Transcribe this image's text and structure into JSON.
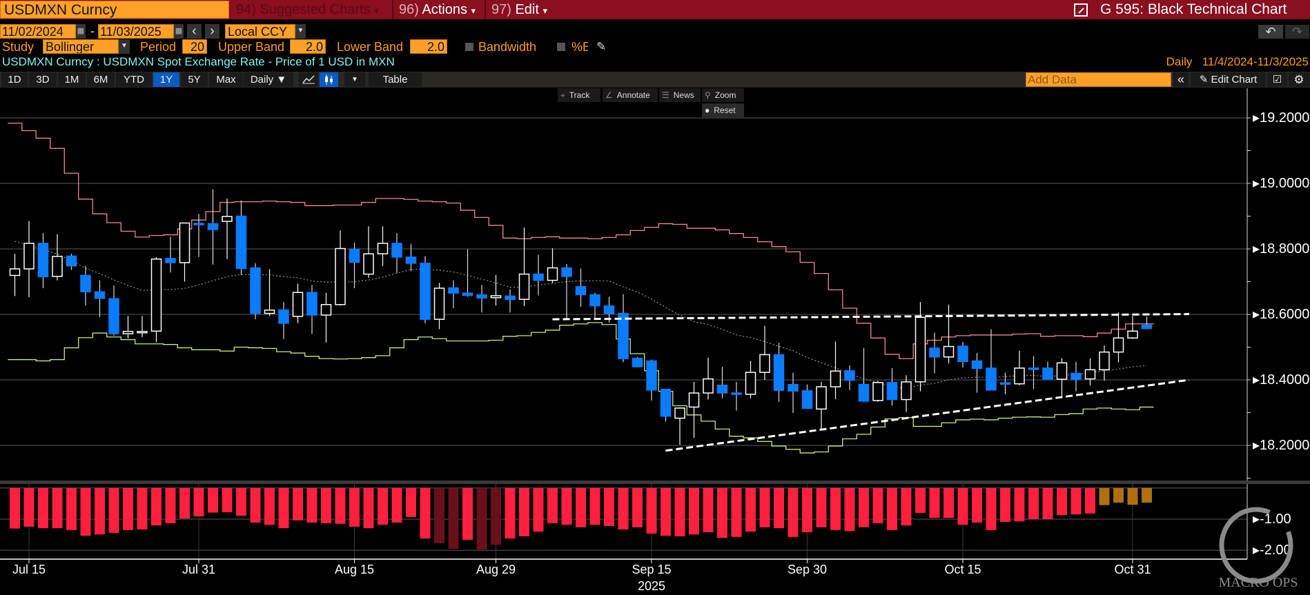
{
  "header": {
    "ticker": "USDMXN Curncy",
    "menu": [
      {
        "num": "94)",
        "label": "Suggested Charts",
        "caret": "▾"
      },
      {
        "num": "96)",
        "label": "Actions",
        "caret": "▾"
      },
      {
        "num": "97)",
        "label": "Edit",
        "caret": "▾"
      }
    ],
    "title": "G 595: Black Technical Chart",
    "title_icon": "external-link-icon"
  },
  "controls": {
    "start_date": "11/02/2024",
    "end_date": "11/03/2025",
    "date_sep": "-",
    "prev": "‹",
    "next": "›",
    "currency": "Local CCY",
    "study_label": "Study",
    "study": "Bollinger",
    "period_label": "Period",
    "period": "20",
    "upper_label": "Upper Band",
    "upper": "2.0",
    "lower_label": "Lower Band",
    "lower": "2.0",
    "bandwidth_label": "Bandwidth",
    "bandwidth_checked": false,
    "pctb_label": "%B",
    "pctb_checked": false,
    "undo": "↶",
    "redo": "↷"
  },
  "subtitle": {
    "security": "USDMXN Curncy : USDMXN Spot Exchange Rate - Price of 1 USD in MXN",
    "frequency": "Daily",
    "range": "11/4/2024-11/3/2025"
  },
  "toolbar": {
    "ranges": [
      "1D",
      "3D",
      "1M",
      "6M",
      "YTD",
      "1Y",
      "5Y",
      "Max"
    ],
    "active_range": "1Y",
    "frequency": "Daily ▼",
    "table": "Table",
    "add_data_placeholder": "Add Data",
    "collapse": "«",
    "edit_chart": "Edit Chart"
  },
  "chart_tools": {
    "track": "Track",
    "annotate": "Annotate",
    "news": "News",
    "zoom": "Zoom",
    "reset": "Reset"
  },
  "watermark": "MACRO OPS",
  "colors": {
    "up_candle": "#ffffff",
    "down_candle": "#0a7cff",
    "upper_band": "#f08a8f",
    "middle_band": "#8a8a8a",
    "lower_band": "#c6ef7c",
    "osc_bar": "#ff1f3f",
    "osc_bar_dark": "#6a0f1c",
    "osc_bar_orange": "#b0700f",
    "header_bg": "#8a0f1f",
    "field": "#ffa028"
  },
  "chart_data": [
    {
      "type": "candlestick",
      "title": "",
      "ylim": [
        18.09,
        19.29
      ],
      "y_ticks": [
        "19.2000",
        "19.0000",
        "18.8000",
        "18.6000",
        "18.4000",
        "18.2000"
      ],
      "x_ticks": [
        {
          "date": "2025-07-15",
          "label": "Jul 15"
        },
        {
          "date": "2025-07-31",
          "label": "Jul 31"
        },
        {
          "date": "2025-08-15",
          "label": "Aug 15"
        },
        {
          "date": "2025-08-29",
          "label": "Aug 29"
        },
        {
          "date": "2025-09-15",
          "label": "Sep 15"
        },
        {
          "date": "2025-09-30",
          "label": "Sep 30"
        },
        {
          "date": "2025-10-15",
          "label": "Oct 15"
        },
        {
          "date": "2025-10-31",
          "label": "Oct 31"
        }
      ],
      "year_label": {
        "date": "2025-09-15",
        "label": "2025"
      },
      "grid": true,
      "columns": [
        "date",
        "open",
        "high",
        "low",
        "close"
      ],
      "candles": [
        [
          "2025-07-14",
          18.719,
          18.785,
          18.656,
          18.739
        ],
        [
          "2025-07-15",
          18.739,
          18.885,
          18.652,
          18.817
        ],
        [
          "2025-07-16",
          18.817,
          18.849,
          18.68,
          18.715
        ],
        [
          "2025-07-17",
          18.716,
          18.845,
          18.704,
          18.777
        ],
        [
          "2025-07-18",
          18.778,
          18.785,
          18.736,
          18.748
        ],
        [
          "2025-07-21",
          18.719,
          18.748,
          18.627,
          18.669
        ],
        [
          "2025-07-22",
          18.669,
          18.704,
          18.591,
          18.649
        ],
        [
          "2025-07-23",
          18.648,
          18.688,
          18.535,
          18.541
        ],
        [
          "2025-07-24",
          18.541,
          18.595,
          18.527,
          18.548
        ],
        [
          "2025-07-25",
          18.548,
          18.595,
          18.531,
          18.548
        ],
        [
          "2025-07-28",
          18.549,
          18.775,
          18.515,
          18.769
        ],
        [
          "2025-07-29",
          18.771,
          18.837,
          18.728,
          18.758
        ],
        [
          "2025-07-30",
          18.758,
          18.88,
          18.7,
          18.879
        ],
        [
          "2025-07-31",
          18.878,
          18.907,
          18.775,
          18.876
        ],
        [
          "2025-08-01",
          18.877,
          18.982,
          18.752,
          18.859
        ],
        [
          "2025-08-04",
          18.884,
          18.954,
          18.769,
          18.899
        ],
        [
          "2025-08-05",
          18.9,
          18.948,
          18.72,
          18.74
        ],
        [
          "2025-08-06",
          18.742,
          18.756,
          18.585,
          18.603
        ],
        [
          "2025-08-07",
          18.603,
          18.738,
          18.595,
          18.613
        ],
        [
          "2025-08-08",
          18.614,
          18.638,
          18.525,
          18.573
        ],
        [
          "2025-08-11",
          18.594,
          18.694,
          18.573,
          18.667
        ],
        [
          "2025-08-12",
          18.667,
          18.69,
          18.54,
          18.598
        ],
        [
          "2025-08-13",
          18.598,
          18.666,
          18.514,
          18.63
        ],
        [
          "2025-08-14",
          18.63,
          18.856,
          18.627,
          18.801
        ],
        [
          "2025-08-15",
          18.799,
          18.819,
          18.68,
          18.759
        ],
        [
          "2025-08-18",
          18.723,
          18.869,
          18.712,
          18.785
        ],
        [
          "2025-08-19",
          18.785,
          18.869,
          18.748,
          18.817
        ],
        [
          "2025-08-20",
          18.817,
          18.848,
          18.727,
          18.775
        ],
        [
          "2025-08-21",
          18.775,
          18.815,
          18.732,
          18.756
        ],
        [
          "2025-08-22",
          18.756,
          18.778,
          18.573,
          18.585
        ],
        [
          "2025-08-25",
          18.585,
          18.696,
          18.555,
          18.68
        ],
        [
          "2025-08-26",
          18.681,
          18.704,
          18.619,
          18.665
        ],
        [
          "2025-08-27",
          18.665,
          18.799,
          18.654,
          18.658
        ],
        [
          "2025-08-28",
          18.66,
          18.69,
          18.606,
          18.65
        ],
        [
          "2025-08-29",
          18.651,
          18.72,
          18.627,
          18.657
        ],
        [
          "2025-09-01",
          18.656,
          18.676,
          18.606,
          18.646
        ],
        [
          "2025-09-02",
          18.646,
          18.865,
          18.625,
          18.723
        ],
        [
          "2025-09-03",
          18.723,
          18.782,
          18.658,
          18.704
        ],
        [
          "2025-09-04",
          18.704,
          18.802,
          18.696,
          18.742
        ],
        [
          "2025-09-05",
          18.742,
          18.754,
          18.587,
          18.716
        ],
        [
          "2025-09-08",
          18.685,
          18.74,
          18.623,
          18.66
        ],
        [
          "2025-09-09",
          18.66,
          18.666,
          18.583,
          18.626
        ],
        [
          "2025-09-10",
          18.626,
          18.654,
          18.575,
          18.602
        ],
        [
          "2025-09-11",
          18.603,
          18.662,
          18.454,
          18.465
        ],
        [
          "2025-09-12",
          18.466,
          18.47,
          18.438,
          18.44
        ],
        [
          "2025-09-15",
          18.458,
          18.462,
          18.337,
          18.369
        ],
        [
          "2025-09-16",
          18.371,
          18.373,
          18.273,
          18.289
        ],
        [
          "2025-09-17",
          18.283,
          18.316,
          18.202,
          18.314
        ],
        [
          "2025-09-18",
          18.317,
          18.394,
          18.223,
          18.36
        ],
        [
          "2025-09-19",
          18.36,
          18.468,
          18.34,
          18.403
        ],
        [
          "2025-09-22",
          18.384,
          18.44,
          18.344,
          18.36
        ],
        [
          "2025-09-23",
          18.36,
          18.394,
          18.306,
          18.356
        ],
        [
          "2025-09-24",
          18.356,
          18.458,
          18.344,
          18.423
        ],
        [
          "2025-09-25",
          18.423,
          18.565,
          18.4,
          18.477
        ],
        [
          "2025-09-26",
          18.477,
          18.513,
          18.333,
          18.368
        ],
        [
          "2025-09-29",
          18.386,
          18.422,
          18.299,
          18.366
        ],
        [
          "2025-09-30",
          18.367,
          18.386,
          18.313,
          18.313
        ],
        [
          "2025-10-01",
          18.311,
          18.394,
          18.248,
          18.379
        ],
        [
          "2025-10-02",
          18.379,
          18.517,
          18.341,
          18.427
        ],
        [
          "2025-10-03",
          18.428,
          18.444,
          18.369,
          18.399
        ],
        [
          "2025-10-06",
          18.386,
          18.497,
          18.333,
          18.335
        ],
        [
          "2025-10-07",
          18.337,
          18.397,
          18.333,
          18.392
        ],
        [
          "2025-10-08",
          18.392,
          18.436,
          18.321,
          18.34
        ],
        [
          "2025-10-09",
          18.34,
          18.414,
          18.302,
          18.394
        ],
        [
          "2025-10-10",
          18.394,
          18.638,
          18.365,
          18.591
        ],
        [
          "2025-10-13",
          18.497,
          18.544,
          18.42,
          18.47
        ],
        [
          "2025-10-14",
          18.47,
          18.63,
          18.45,
          18.502
        ],
        [
          "2025-10-15",
          18.503,
          18.516,
          18.438,
          18.456
        ],
        [
          "2025-10-16",
          18.458,
          18.482,
          18.361,
          18.435
        ],
        [
          "2025-10-17",
          18.436,
          18.555,
          18.369,
          18.369
        ],
        [
          "2025-10-20",
          18.391,
          18.422,
          18.356,
          18.389
        ],
        [
          "2025-10-21",
          18.388,
          18.489,
          18.384,
          18.436
        ],
        [
          "2025-10-22",
          18.436,
          18.472,
          18.372,
          18.432
        ],
        [
          "2025-10-23",
          18.436,
          18.456,
          18.402,
          18.402
        ],
        [
          "2025-10-24",
          18.402,
          18.466,
          18.345,
          18.452
        ],
        [
          "2025-10-27",
          18.42,
          18.455,
          18.365,
          18.402
        ],
        [
          "2025-10-28",
          18.403,
          18.466,
          18.383,
          18.431
        ],
        [
          "2025-10-29",
          18.431,
          18.505,
          18.398,
          18.485
        ],
        [
          "2025-10-30",
          18.485,
          18.606,
          18.454,
          18.528
        ],
        [
          "2025-10-31",
          18.528,
          18.595,
          18.525,
          18.549
        ],
        [
          "2025-11-03",
          18.567,
          18.593,
          18.555,
          18.557
        ]
      ],
      "bollinger": {
        "period": 20,
        "upper": [
          19.184,
          19.161,
          19.138,
          19.107,
          19.031,
          18.952,
          18.907,
          18.88,
          18.854,
          18.836,
          18.841,
          18.843,
          18.861,
          18.888,
          18.914,
          18.942,
          18.944,
          18.944,
          18.946,
          18.944,
          18.942,
          18.932,
          18.932,
          18.934,
          18.934,
          18.942,
          18.954,
          18.954,
          18.951,
          18.946,
          18.944,
          18.94,
          18.918,
          18.896,
          18.872,
          18.833,
          18.831,
          18.835,
          18.837,
          18.833,
          18.833,
          18.831,
          18.835,
          18.843,
          18.856,
          18.866,
          18.877,
          18.875,
          18.863,
          18.863,
          18.858,
          18.847,
          18.835,
          18.822,
          18.807,
          18.791,
          18.759,
          18.725,
          18.675,
          18.619,
          18.573,
          18.528,
          18.478,
          18.465,
          18.51,
          18.521,
          18.531,
          18.535,
          18.537,
          18.537,
          18.537,
          18.54,
          18.541,
          18.533,
          18.535,
          18.535,
          18.532,
          18.543,
          18.555,
          18.571,
          18.571
        ],
        "lower": [
          18.462,
          18.462,
          18.458,
          18.462,
          18.498,
          18.529,
          18.543,
          18.531,
          18.523,
          18.51,
          18.51,
          18.508,
          18.498,
          18.492,
          18.492,
          18.488,
          18.5,
          18.498,
          18.496,
          18.486,
          18.482,
          18.472,
          18.465,
          18.464,
          18.465,
          18.468,
          18.474,
          18.498,
          18.523,
          18.531,
          18.526,
          18.519,
          18.519,
          18.519,
          18.521,
          18.533,
          18.535,
          18.545,
          18.552,
          18.567,
          18.571,
          18.575,
          18.569,
          18.525,
          18.48,
          18.428,
          18.365,
          18.321,
          18.293,
          18.274,
          18.25,
          18.228,
          18.223,
          18.212,
          18.198,
          18.188,
          18.177,
          18.18,
          18.198,
          18.22,
          18.234,
          18.256,
          18.281,
          18.285,
          18.258,
          18.258,
          18.269,
          18.278,
          18.28,
          18.278,
          18.283,
          18.286,
          18.287,
          18.286,
          18.294,
          18.297,
          18.311,
          18.314,
          18.311,
          18.309,
          18.317
        ]
      },
      "trendlines": [
        {
          "name": "resistance",
          "style": "dashed",
          "start": [
            "2025-09-04",
            18.585
          ],
          "end": [
            "2025-11-06",
            18.601
          ]
        },
        {
          "name": "support",
          "style": "dashed",
          "start": [
            "2025-09-16",
            18.184
          ],
          "end": [
            "2025-11-06",
            18.4
          ]
        }
      ]
    },
    {
      "type": "bar",
      "title": "",
      "ylim": [
        -2.3,
        0
      ],
      "y_ticks": [
        "-1.00",
        "-2.00"
      ],
      "values": [
        -1.3,
        -1.24,
        -1.29,
        -1.29,
        -1.35,
        -1.53,
        -1.49,
        -1.44,
        -1.35,
        -1.33,
        -1.2,
        -1.13,
        -0.98,
        -0.91,
        -0.79,
        -0.78,
        -0.89,
        -1.11,
        -1.18,
        -1.29,
        -1.04,
        -1.11,
        -1.13,
        -1.15,
        -1.24,
        -1.29,
        -1.18,
        -1.11,
        -0.93,
        -1.62,
        -1.77,
        -1.95,
        -1.66,
        -1.97,
        -1.82,
        -1.62,
        -1.55,
        -1.4,
        -1.13,
        -1.18,
        -1.26,
        -1.18,
        -1.22,
        -1.33,
        -1.26,
        -1.46,
        -1.53,
        -1.55,
        -1.49,
        -1.42,
        -1.6,
        -1.57,
        -1.4,
        -1.26,
        -1.29,
        -1.57,
        -1.42,
        -1.26,
        -1.35,
        -1.38,
        -1.26,
        -1.13,
        -1.35,
        -1.2,
        -0.8,
        -0.96,
        -0.96,
        -1.18,
        -1.11,
        -1.35,
        -1.09,
        -1.07,
        -1.0,
        -1.0,
        -0.87,
        -0.85,
        -0.82,
        -0.55,
        -0.47,
        -0.54,
        -0.47
      ],
      "dark_bars": [
        "2025-08-25",
        "2025-08-26",
        "2025-08-28",
        "2025-08-29"
      ],
      "orange_bars": [
        "2025-10-29",
        "2025-10-30",
        "2025-10-31",
        "2025-11-03"
      ]
    }
  ]
}
